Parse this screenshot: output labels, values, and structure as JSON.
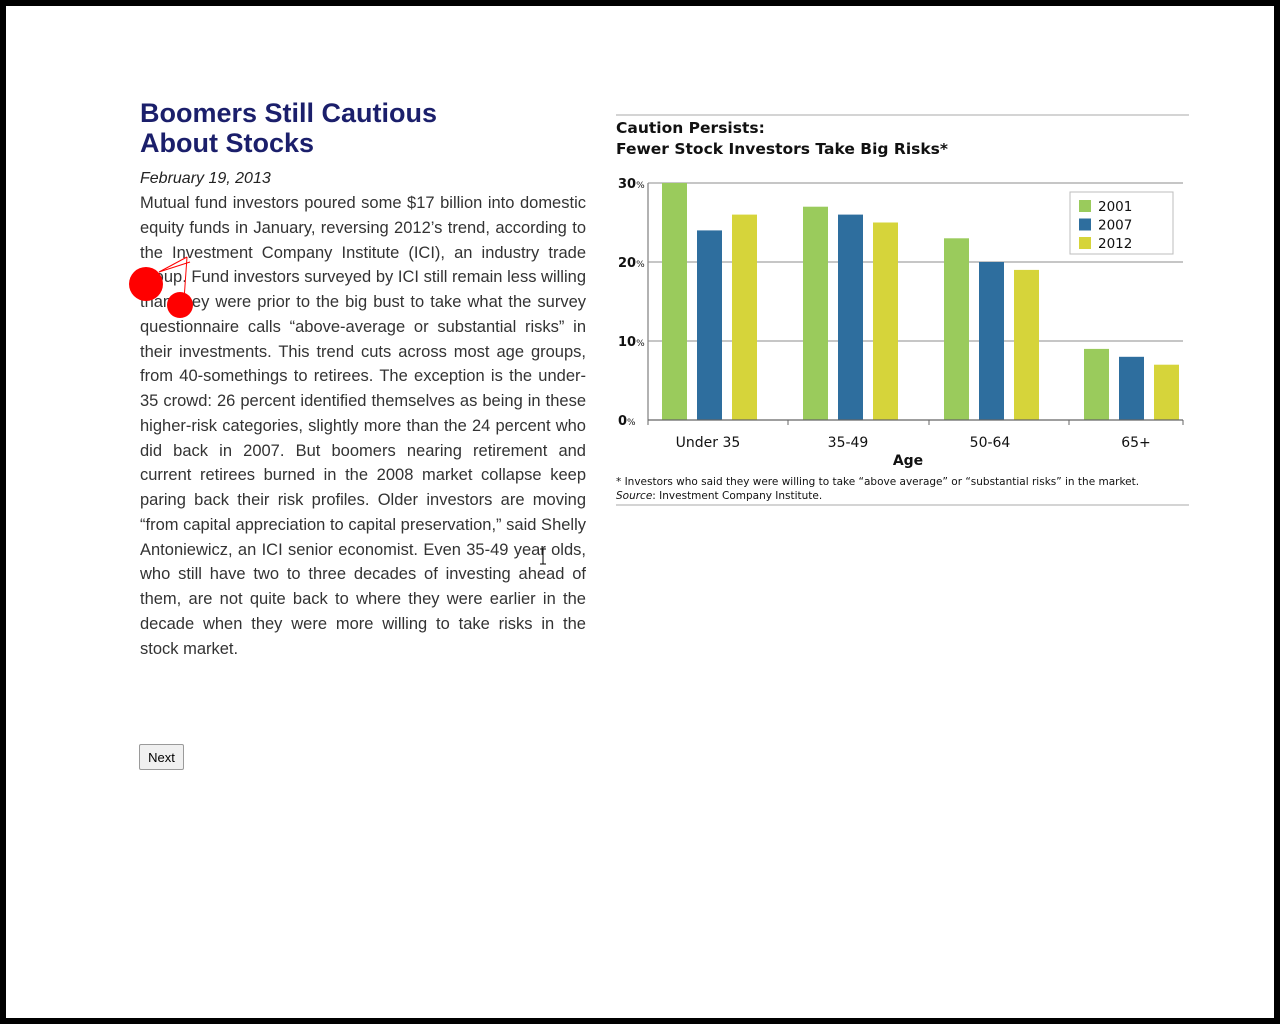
{
  "article": {
    "headline_line1": "Boomers Still Cautious",
    "headline_line2": "About Stocks",
    "date": "February 19, 2013",
    "body": "Mutual fund investors poured some $17 billion into domestic equity funds in January, reversing 2012’s trend, according to the Investment Company Institute (ICI), an industry trade group. Fund investors surveyed by ICI still remain less willing than they were prior to the big bust to take what the survey questionnaire calls “above-average or substantial risks” in their investments. This trend cuts across most age groups, from 40-somethings to retirees. The exception is the under-35 crowd: 26 percent identified themselves as being in these higher-risk categories, slightly more than the 24 percent who did back in 2007. But boomers nearing retirement and current retirees burned in the 2008 market collapse keep paring back their risk profiles. Older investors are moving “from capital appreciation to capital preservation,” said Shelly Antoniewicz, an ICI senior economist. Even 35-49 year olds, who still have two to three decades of investing ahead of them, are not quite back to where they were earlier in the decade when they were more willing to take risks in the stock market."
  },
  "nav": {
    "next_label": "Next"
  },
  "chart_data": {
    "type": "bar",
    "title": "Caution Persists:",
    "subtitle": "Fewer Stock Investors Take Big Risks*",
    "xlabel": "Age",
    "ylabel": "",
    "categories": [
      "Under 35",
      "35-49",
      "50-64",
      "65+"
    ],
    "series": [
      {
        "name": "2001",
        "color": "#9acb5c",
        "values": [
          30,
          27,
          23,
          9
        ]
      },
      {
        "name": "2007",
        "color": "#2e6e9e",
        "values": [
          24,
          26,
          20,
          8
        ]
      },
      {
        "name": "2012",
        "color": "#d6d43a",
        "values": [
          26,
          25,
          19,
          7
        ]
      }
    ],
    "ylim": [
      0,
      30
    ],
    "yticks": [
      {
        "num": "0",
        "unit": "%",
        "value": 0
      },
      {
        "num": "10",
        "unit": "%",
        "value": 10
      },
      {
        "num": "20",
        "unit": "%",
        "value": 20
      },
      {
        "num": "30",
        "unit": "%",
        "value": 30
      }
    ],
    "grid": true,
    "legend_position": "top-right",
    "footnote": "* Investors who said they were willing to take “above average” or “substantial risks” in the market.",
    "source_label": "Source",
    "source_text": ": Investment Company Institute."
  },
  "overlay": {
    "marker_color": "#ff0000"
  }
}
